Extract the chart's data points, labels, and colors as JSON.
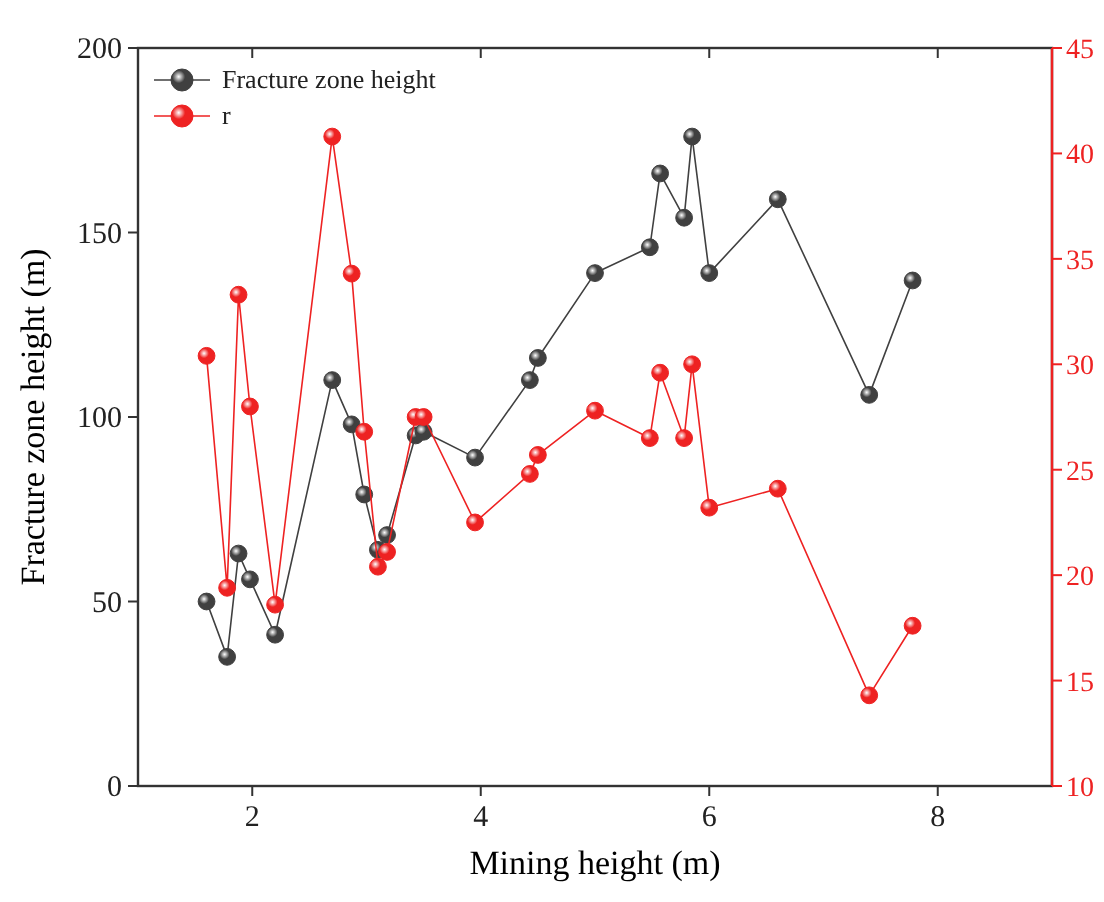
{
  "chart_data": {
    "type": "line",
    "xlabel": "Mining height (m)",
    "ylabel": "Fracture zone height (m)",
    "xlim": [
      1,
      9
    ],
    "xticks": [
      2,
      4,
      6,
      8
    ],
    "ylim": [
      0,
      200
    ],
    "yticks": [
      0,
      50,
      100,
      150,
      200
    ],
    "y2lim": [
      10,
      45
    ],
    "y2ticks": [
      10,
      15,
      20,
      25,
      30,
      35,
      40,
      45
    ],
    "x": [
      1.6,
      1.78,
      1.88,
      1.98,
      2.2,
      2.7,
      2.87,
      2.98,
      3.1,
      3.18,
      3.43,
      3.5,
      3.95,
      4.43,
      4.5,
      5.0,
      5.48,
      5.57,
      5.78,
      5.85,
      6.0,
      6.6,
      7.4,
      7.78
    ],
    "series": [
      {
        "name": "Fracture zone height",
        "color": "#404040",
        "values": [
          50,
          35,
          63,
          56,
          41,
          110,
          98,
          79,
          64,
          68,
          95,
          96,
          89,
          110,
          116,
          139,
          146,
          166,
          154,
          176,
          139,
          159,
          106,
          137
        ]
      },
      {
        "name": "r",
        "color": "#ee2222",
        "axis": "y2",
        "values": [
          30.4,
          19.4,
          33.3,
          28,
          18.6,
          40.8,
          34.3,
          26.8,
          20.4,
          21.1,
          27.5,
          27.5,
          22.5,
          24.8,
          25.7,
          27.8,
          26.5,
          29.6,
          26.5,
          30,
          23.2,
          24.1,
          14.3,
          17.6
        ]
      }
    ],
    "legend": "top left",
    "marker": "circle",
    "grid": false
  }
}
